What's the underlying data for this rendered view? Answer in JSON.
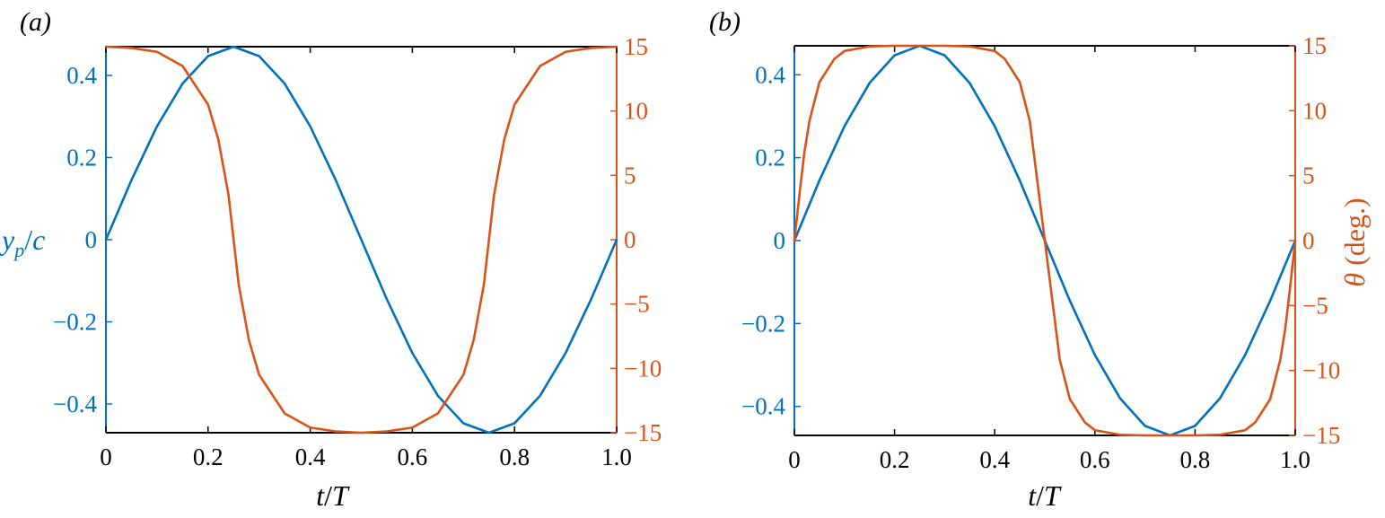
{
  "colors": {
    "left_axis": "#0072BD",
    "right_axis": "#D95319",
    "frame": "#000000"
  },
  "chart_data": [
    {
      "type": "line",
      "panel_label": "(a)",
      "xlabel": "t/T",
      "ylabel_left": "y_p/c",
      "ylabel_right": "",
      "xlim": [
        0,
        1
      ],
      "ylim_left": [
        -0.47,
        0.47
      ],
      "ylim_right": [
        -15,
        15
      ],
      "x_ticks": [
        "0",
        "0.2",
        "0.4",
        "0.6",
        "0.8",
        "1.0"
      ],
      "y_left_ticks": [
        "−0.4",
        "−0.2",
        "0",
        "0.2",
        "0.4"
      ],
      "y_right_ticks": [
        "−15",
        "−10",
        "−5",
        "0",
        "5",
        "10",
        "15"
      ],
      "grid": false,
      "series": [
        {
          "axis": "left",
          "color": "#0072BD",
          "x": [
            0,
            0.05,
            0.1,
            0.15,
            0.2,
            0.25,
            0.3,
            0.35,
            0.4,
            0.45,
            0.5,
            0.55,
            0.6,
            0.65,
            0.7,
            0.75,
            0.8,
            0.85,
            0.9,
            0.95,
            1.0
          ],
          "y": [
            0,
            0.145,
            0.276,
            0.38,
            0.447,
            0.47,
            0.447,
            0.38,
            0.276,
            0.145,
            0,
            -0.145,
            -0.276,
            -0.38,
            -0.447,
            -0.47,
            -0.447,
            -0.38,
            -0.276,
            -0.145,
            0
          ]
        },
        {
          "axis": "right",
          "color": "#D95319",
          "x": [
            0,
            0.05,
            0.1,
            0.15,
            0.2,
            0.22,
            0.24,
            0.25,
            0.26,
            0.28,
            0.3,
            0.35,
            0.4,
            0.45,
            0.5,
            0.55,
            0.6,
            0.65,
            0.7,
            0.72,
            0.74,
            0.75,
            0.76,
            0.78,
            0.8,
            0.85,
            0.9,
            0.95,
            1.0
          ],
          "y": [
            15,
            14.9,
            14.6,
            13.5,
            10.5,
            7.8,
            3.5,
            0,
            -3.5,
            -7.8,
            -10.5,
            -13.5,
            -14.6,
            -14.9,
            -15,
            -14.9,
            -14.6,
            -13.5,
            -10.5,
            -7.8,
            -3.5,
            0,
            3.5,
            7.8,
            10.5,
            13.5,
            14.6,
            14.9,
            15
          ]
        }
      ]
    },
    {
      "type": "line",
      "panel_label": "(b)",
      "xlabel": "t/T",
      "ylabel_left": "",
      "ylabel_right": "θ (deg.)",
      "xlim": [
        0,
        1
      ],
      "ylim_left": [
        -0.47,
        0.47
      ],
      "ylim_right": [
        -15,
        15
      ],
      "x_ticks": [
        "0",
        "0.2",
        "0.4",
        "0.6",
        "0.8",
        "1.0"
      ],
      "y_left_ticks": [
        "−0.4",
        "−0.2",
        "0",
        "0.2",
        "0.4"
      ],
      "y_right_ticks": [
        "−15",
        "−10",
        "−5",
        "0",
        "5",
        "10",
        "15"
      ],
      "grid": false,
      "series": [
        {
          "axis": "left",
          "color": "#0072BD",
          "x": [
            0,
            0.05,
            0.1,
            0.15,
            0.2,
            0.25,
            0.3,
            0.35,
            0.4,
            0.45,
            0.5,
            0.55,
            0.6,
            0.65,
            0.7,
            0.75,
            0.8,
            0.85,
            0.9,
            0.95,
            1.0
          ],
          "y": [
            0,
            0.145,
            0.276,
            0.38,
            0.447,
            0.47,
            0.447,
            0.38,
            0.276,
            0.145,
            0,
            -0.145,
            -0.276,
            -0.38,
            -0.447,
            -0.47,
            -0.447,
            -0.38,
            -0.276,
            -0.145,
            0
          ]
        },
        {
          "axis": "right",
          "color": "#D95319",
          "x": [
            0,
            0.01,
            0.02,
            0.03,
            0.05,
            0.08,
            0.1,
            0.15,
            0.2,
            0.25,
            0.3,
            0.35,
            0.4,
            0.42,
            0.45,
            0.47,
            0.5,
            0.53,
            0.55,
            0.58,
            0.6,
            0.65,
            0.7,
            0.75,
            0.8,
            0.85,
            0.9,
            0.92,
            0.95,
            0.97,
            0.98,
            0.99,
            1.0
          ],
          "y": [
            0,
            3.5,
            6.8,
            9.2,
            12.2,
            14.0,
            14.6,
            14.95,
            15,
            15,
            15,
            14.95,
            14.6,
            14.0,
            12.2,
            9.2,
            0,
            -9.2,
            -12.2,
            -14.0,
            -14.6,
            -14.95,
            -15,
            -15,
            -15,
            -14.95,
            -14.6,
            -14.0,
            -12.2,
            -9.2,
            -6.8,
            -3.5,
            0
          ]
        }
      ]
    }
  ]
}
